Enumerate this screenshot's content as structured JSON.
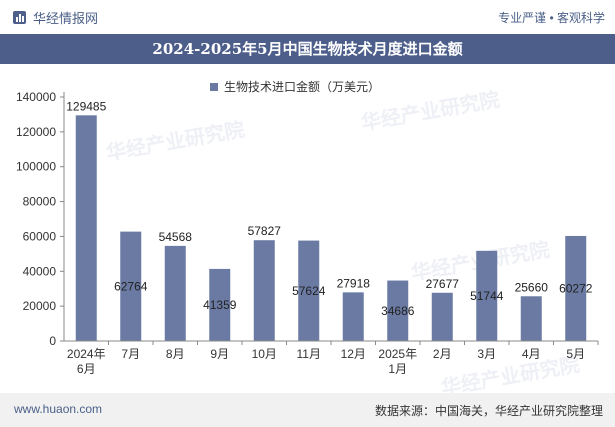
{
  "header": {
    "brand": "华经情报网",
    "slogan": "专业严谨 • 客观科学"
  },
  "title": "2024-2025年5月中国生物技术月度进口金额",
  "legend": {
    "label": "生物技术进口金额（万美元）"
  },
  "footer": {
    "url": "www.huaon.com",
    "source": "数据来源：中国海关，华经产业研究院整理"
  },
  "watermark": "华经产业研究院",
  "colors": {
    "bar": "#6a7aa3",
    "title_bg": "#4d5e8a",
    "footer_bg": "#f1f1f1"
  },
  "chart_data": {
    "type": "bar",
    "categories": [
      "2024年\n6月",
      "7月",
      "8月",
      "9月",
      "10月",
      "11月",
      "12月",
      "2025年\n1月",
      "2月",
      "3月",
      "4月",
      "5月"
    ],
    "values": [
      129485,
      62764,
      54568,
      41359,
      57827,
      57624,
      27918,
      34686,
      27677,
      51744,
      25660,
      60272
    ],
    "series": [
      {
        "name": "生物技术进口金额（万美元）",
        "values": [
          129485,
          62764,
          54568,
          41359,
          57827,
          57624,
          27918,
          34686,
          27677,
          51744,
          25660,
          60272
        ]
      }
    ],
    "label_position": [
      "top",
      "inside",
      "top",
      "inside",
      "top",
      "inside",
      "top",
      "inside",
      "top",
      "inside",
      "top",
      "inside"
    ],
    "ylim": [
      0,
      140000
    ],
    "yticks": [
      0,
      20000,
      40000,
      60000,
      80000,
      100000,
      120000,
      140000
    ],
    "grid": false,
    "legend_position": "top"
  }
}
